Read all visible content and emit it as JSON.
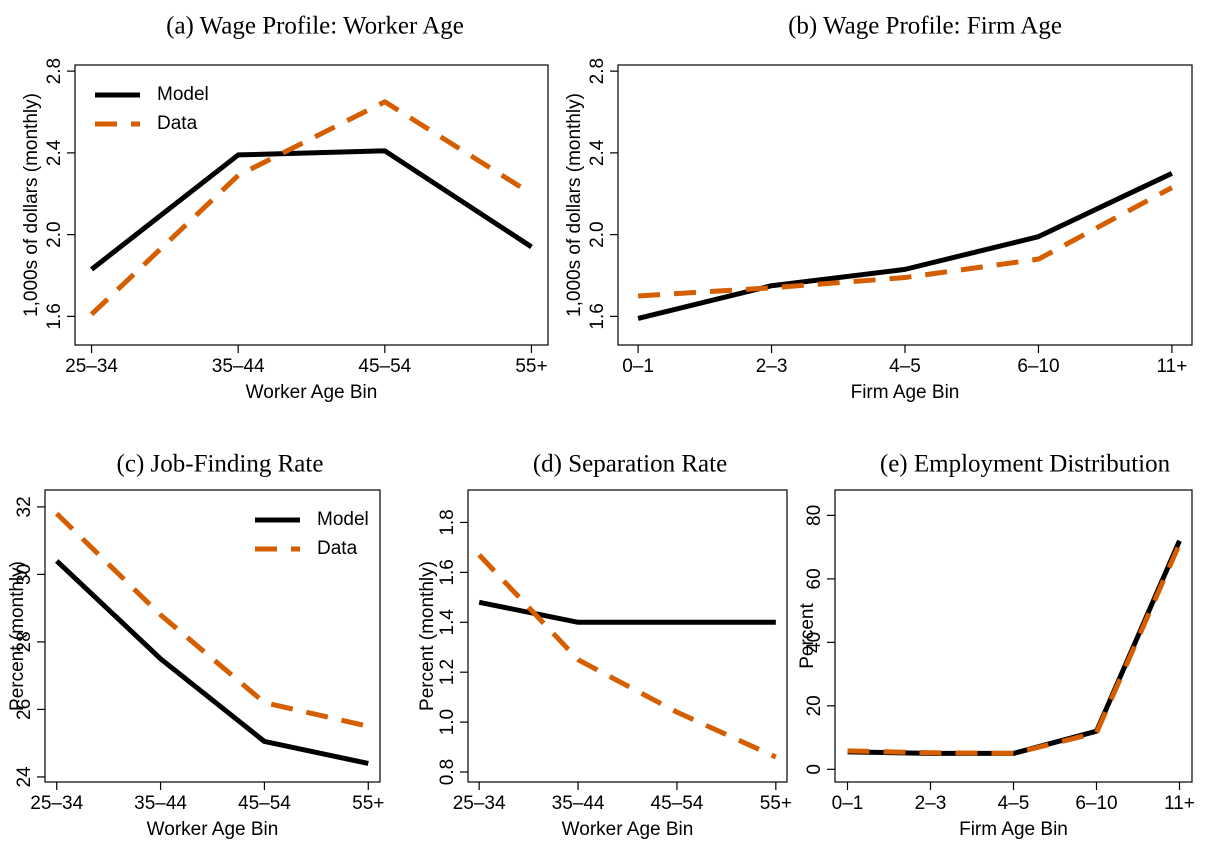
{
  "chart_data": [
    {
      "type": "line",
      "title": "(a) Wage Profile: Worker Age",
      "xlabel": "Worker Age Bin",
      "ylabel": "1,000s of dollars (monthly)",
      "categories": [
        "25–34",
        "35–44",
        "45–54",
        "55+"
      ],
      "series": [
        {
          "name": "Model",
          "color": "#000000",
          "dashed": false,
          "values": [
            1.83,
            2.39,
            2.41,
            1.94
          ]
        },
        {
          "name": "Data",
          "color": "#d55e00",
          "dashed": true,
          "values": [
            1.61,
            2.29,
            2.65,
            2.2
          ]
        }
      ],
      "ylim": [
        1.46,
        2.83
      ],
      "yticks": [
        1.6,
        {
          "value": 2,
          "label": "2.0"
        },
        2.4,
        2.8
      ],
      "legend": "top-left"
    },
    {
      "type": "line",
      "title": "(b) Wage Profile: Firm Age",
      "xlabel": "Firm Age Bin",
      "ylabel": "1,000s of dollars (monthly)",
      "categories": [
        "0–1",
        "2–3",
        "4–5",
        "6–10",
        "11+"
      ],
      "series": [
        {
          "color": "#000000",
          "dashed": false,
          "values": [
            1.59,
            1.75,
            1.83,
            1.99,
            2.3
          ]
        },
        {
          "color": "#d55e00",
          "dashed": true,
          "values": [
            1.7,
            1.74,
            1.79,
            1.88,
            2.23
          ]
        }
      ],
      "ylim": [
        1.46,
        2.83
      ],
      "yticks": [
        1.6,
        {
          "value": 2,
          "label": "2.0"
        },
        2.4,
        2.8
      ]
    },
    {
      "type": "line",
      "title": "(c) Job-Finding Rate",
      "xlabel": "Worker Age Bin",
      "ylabel": "Percent (monthly)",
      "categories": [
        "25–34",
        "35–44",
        "45–54",
        "55+"
      ],
      "series": [
        {
          "name": "Model",
          "color": "#000000",
          "dashed": false,
          "values": [
            30.4,
            27.5,
            25.05,
            24.4
          ]
        },
        {
          "name": "Data",
          "color": "#d55e00",
          "dashed": true,
          "values": [
            31.8,
            28.8,
            26.2,
            25.5
          ]
        }
      ],
      "ylim": [
        23.85,
        32.5
      ],
      "yticks": [
        24,
        26,
        28,
        30,
        32
      ],
      "legend": "top-right"
    },
    {
      "type": "line",
      "title": "(d) Separation Rate",
      "xlabel": "Worker Age Bin",
      "ylabel": "Percent (monthly)",
      "categories": [
        "25–34",
        "35–44",
        "45–54",
        "55+"
      ],
      "series": [
        {
          "color": "#000000",
          "dashed": false,
          "values": [
            1.48,
            1.4,
            1.4,
            1.4
          ]
        },
        {
          "color": "#d55e00",
          "dashed": true,
          "values": [
            1.67,
            1.25,
            1.04,
            0.86
          ]
        }
      ],
      "ylim": [
        0.76,
        1.93
      ],
      "yticks": [
        0.8,
        {
          "value": 1,
          "label": "1.0"
        },
        1.2,
        1.4,
        1.6,
        1.8
      ]
    },
    {
      "type": "line",
      "title": "(e) Employment Distribution",
      "xlabel": "Firm Age Bin",
      "ylabel": "Percent",
      "categories": [
        "0–1",
        "2–3",
        "4–5",
        "6–10",
        "11+"
      ],
      "series": [
        {
          "color": "#000000",
          "dashed": false,
          "values": [
            5.5,
            5,
            5,
            12,
            72
          ]
        },
        {
          "color": "#d55e00",
          "dashed": true,
          "values": [
            5.8,
            5.2,
            5,
            11.5,
            71
          ]
        }
      ],
      "ylim": [
        -4,
        88
      ],
      "yticks": [
        0,
        20,
        40,
        60,
        80
      ]
    }
  ]
}
